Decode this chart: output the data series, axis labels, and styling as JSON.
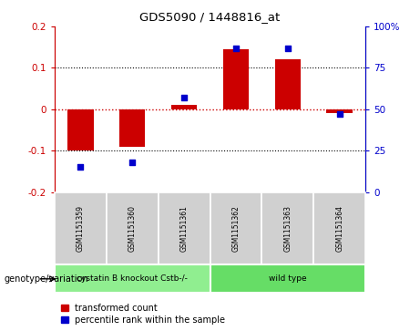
{
  "title": "GDS5090 / 1448816_at",
  "categories": [
    "GSM1151359",
    "GSM1151360",
    "GSM1151361",
    "GSM1151362",
    "GSM1151363",
    "GSM1151364"
  ],
  "bar_values": [
    -0.1,
    -0.09,
    0.01,
    0.145,
    0.12,
    -0.01
  ],
  "percentile_values": [
    15,
    18,
    57,
    87,
    87,
    47
  ],
  "bar_color": "#cc0000",
  "dot_color": "#0000cc",
  "ylim_left": [
    -0.2,
    0.2
  ],
  "ylim_right": [
    0,
    100
  ],
  "yticks_left": [
    -0.2,
    -0.1,
    0.0,
    0.1,
    0.2
  ],
  "ytick_labels_left": [
    "-0.2",
    "-0.1",
    "0",
    "0.1",
    "0.2"
  ],
  "yticks_right": [
    0,
    25,
    50,
    75,
    100
  ],
  "ytick_labels_right": [
    "0",
    "25",
    "50",
    "75",
    "100%"
  ],
  "group_info": [
    {
      "label": "cystatin B knockout Cstb-/-",
      "start": 0,
      "end": 3,
      "color": "#90ee90"
    },
    {
      "label": "wild type",
      "start": 3,
      "end": 6,
      "color": "#66dd66"
    }
  ],
  "genotype_label": "genotype/variation",
  "legend_bar_label": "transformed count",
  "legend_dot_label": "percentile rank within the sample",
  "bar_width": 0.5,
  "zero_line_color": "#cc0000",
  "cell_color": "#d0d0d0",
  "cell_edge_color": "#aaaaaa"
}
